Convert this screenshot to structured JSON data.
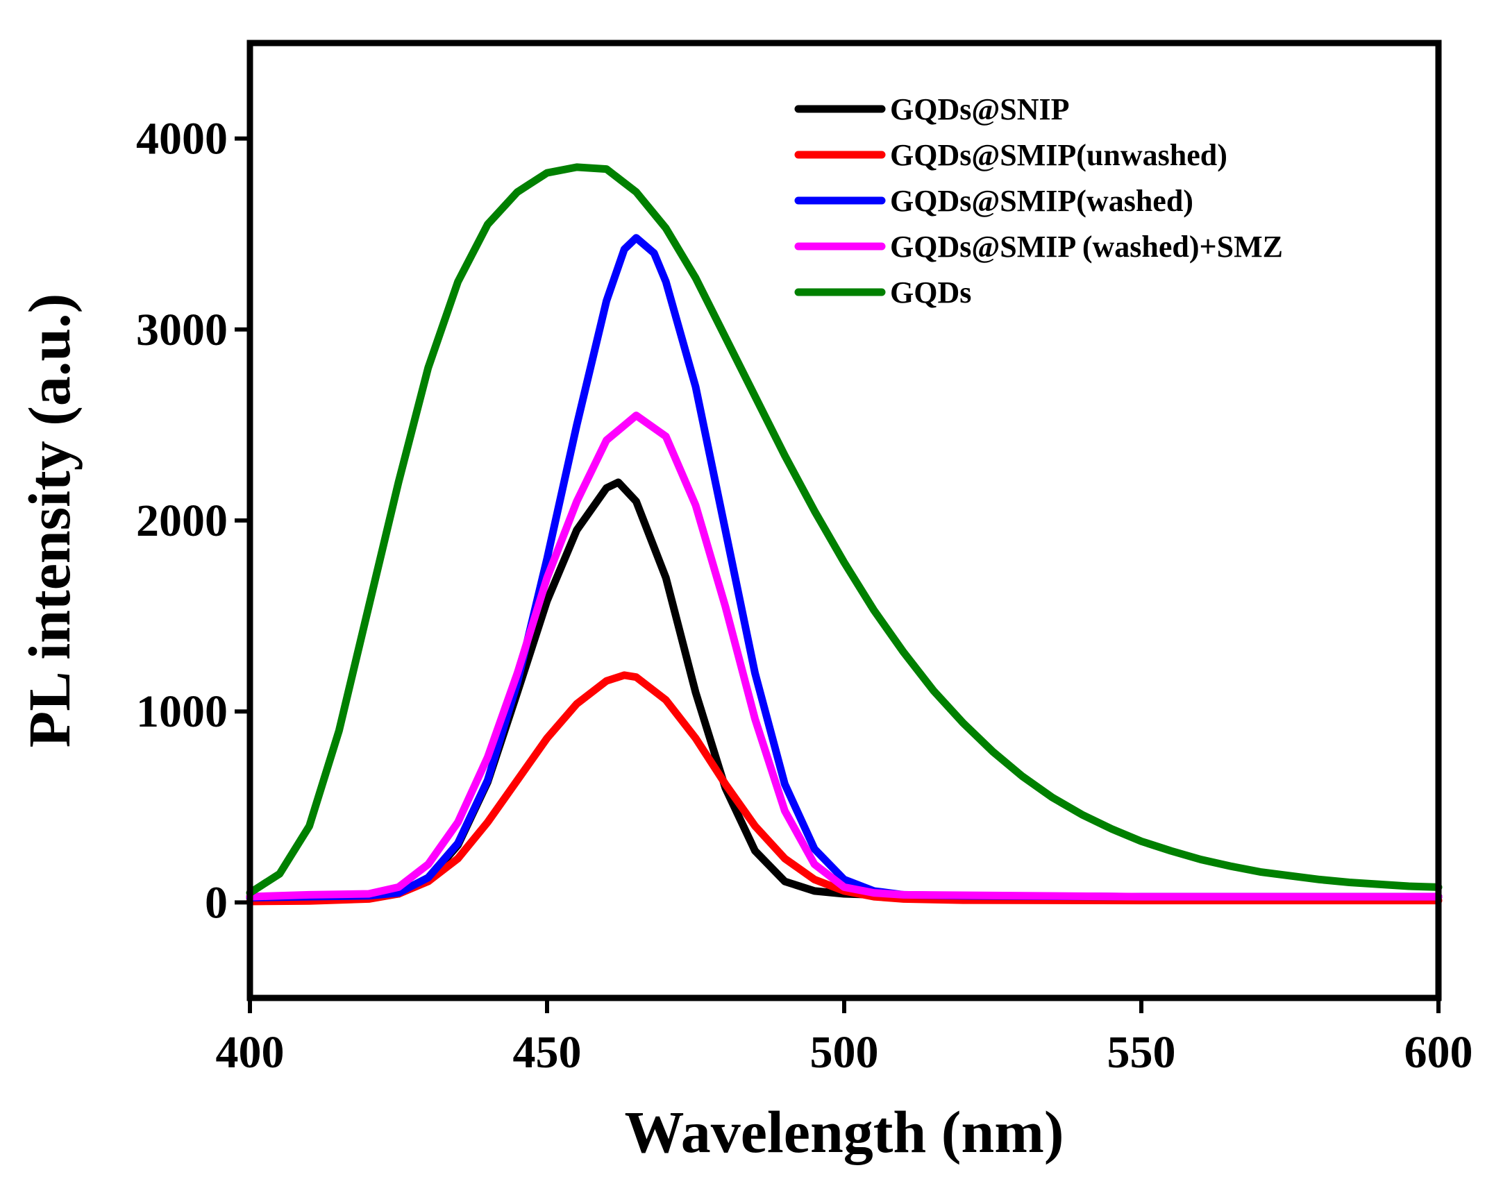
{
  "chart_data": {
    "type": "line",
    "title": "",
    "xlabel": "Wavelength (nm)",
    "ylabel": "PL intensity (a.u.)",
    "xlim": [
      400,
      600
    ],
    "ylim": [
      -500,
      4500
    ],
    "xticks": [
      400,
      450,
      500,
      550,
      600
    ],
    "yticks": [
      0,
      1000,
      2000,
      3000,
      4000
    ],
    "xtick_labels": [
      "400",
      "450",
      "500",
      "550",
      "600"
    ],
    "ytick_labels": [
      "0",
      "1000",
      "2000",
      "3000",
      "4000"
    ],
    "grid": false,
    "legend_position": "top-right",
    "series": [
      {
        "name": "GQDs@SNIP",
        "color": "#000000",
        "points": [
          [
            400,
            30
          ],
          [
            410,
            30
          ],
          [
            420,
            32
          ],
          [
            425,
            45
          ],
          [
            430,
            120
          ],
          [
            435,
            300
          ],
          [
            440,
            630
          ],
          [
            445,
            1100
          ],
          [
            450,
            1580
          ],
          [
            455,
            1950
          ],
          [
            460,
            2170
          ],
          [
            462,
            2200
          ],
          [
            465,
            2100
          ],
          [
            470,
            1700
          ],
          [
            475,
            1100
          ],
          [
            480,
            600
          ],
          [
            485,
            270
          ],
          [
            490,
            110
          ],
          [
            495,
            60
          ],
          [
            500,
            45
          ],
          [
            510,
            35
          ],
          [
            550,
            30
          ],
          [
            600,
            30
          ]
        ]
      },
      {
        "name": "GQDs@SMIP(unwashed)",
        "color": "#ff0000",
        "points": [
          [
            400,
            5
          ],
          [
            410,
            8
          ],
          [
            420,
            18
          ],
          [
            425,
            45
          ],
          [
            430,
            110
          ],
          [
            435,
            230
          ],
          [
            440,
            420
          ],
          [
            445,
            640
          ],
          [
            450,
            860
          ],
          [
            455,
            1040
          ],
          [
            460,
            1160
          ],
          [
            463,
            1190
          ],
          [
            465,
            1180
          ],
          [
            470,
            1060
          ],
          [
            475,
            860
          ],
          [
            480,
            620
          ],
          [
            485,
            400
          ],
          [
            490,
            230
          ],
          [
            495,
            120
          ],
          [
            500,
            60
          ],
          [
            505,
            30
          ],
          [
            510,
            18
          ],
          [
            520,
            12
          ],
          [
            550,
            10
          ],
          [
            600,
            10
          ]
        ]
      },
      {
        "name": "GQDs@SMIP(washed)",
        "color": "#0000ff",
        "points": [
          [
            400,
            25
          ],
          [
            410,
            30
          ],
          [
            420,
            35
          ],
          [
            425,
            50
          ],
          [
            430,
            130
          ],
          [
            435,
            310
          ],
          [
            440,
            640
          ],
          [
            445,
            1150
          ],
          [
            450,
            1800
          ],
          [
            455,
            2500
          ],
          [
            460,
            3150
          ],
          [
            463,
            3420
          ],
          [
            465,
            3480
          ],
          [
            468,
            3400
          ],
          [
            470,
            3250
          ],
          [
            475,
            2700
          ],
          [
            480,
            1950
          ],
          [
            485,
            1200
          ],
          [
            490,
            620
          ],
          [
            495,
            280
          ],
          [
            500,
            120
          ],
          [
            505,
            60
          ],
          [
            510,
            40
          ],
          [
            520,
            35
          ],
          [
            550,
            30
          ],
          [
            600,
            30
          ]
        ]
      },
      {
        "name": "GQDs@SMIP (washed)+SMZ",
        "color": "#ff00ff",
        "points": [
          [
            400,
            30
          ],
          [
            410,
            40
          ],
          [
            420,
            45
          ],
          [
            425,
            80
          ],
          [
            430,
            200
          ],
          [
            435,
            420
          ],
          [
            440,
            760
          ],
          [
            445,
            1200
          ],
          [
            450,
            1700
          ],
          [
            455,
            2100
          ],
          [
            460,
            2420
          ],
          [
            465,
            2550
          ],
          [
            470,
            2440
          ],
          [
            475,
            2080
          ],
          [
            480,
            1550
          ],
          [
            485,
            960
          ],
          [
            490,
            480
          ],
          [
            495,
            200
          ],
          [
            500,
            80
          ],
          [
            505,
            50
          ],
          [
            510,
            40
          ],
          [
            550,
            30
          ],
          [
            600,
            30
          ]
        ]
      },
      {
        "name": "GQDs",
        "color": "#008000",
        "points": [
          [
            400,
            50
          ],
          [
            405,
            150
          ],
          [
            410,
            400
          ],
          [
            415,
            900
          ],
          [
            420,
            1550
          ],
          [
            425,
            2200
          ],
          [
            430,
            2800
          ],
          [
            435,
            3250
          ],
          [
            440,
            3550
          ],
          [
            445,
            3720
          ],
          [
            450,
            3820
          ],
          [
            455,
            3850
          ],
          [
            460,
            3840
          ],
          [
            465,
            3720
          ],
          [
            470,
            3530
          ],
          [
            475,
            3270
          ],
          [
            480,
            2960
          ],
          [
            485,
            2650
          ],
          [
            490,
            2340
          ],
          [
            495,
            2050
          ],
          [
            500,
            1780
          ],
          [
            505,
            1530
          ],
          [
            510,
            1310
          ],
          [
            515,
            1110
          ],
          [
            520,
            940
          ],
          [
            525,
            790
          ],
          [
            530,
            660
          ],
          [
            535,
            550
          ],
          [
            540,
            460
          ],
          [
            545,
            385
          ],
          [
            550,
            320
          ],
          [
            555,
            270
          ],
          [
            560,
            225
          ],
          [
            565,
            190
          ],
          [
            570,
            160
          ],
          [
            575,
            140
          ],
          [
            580,
            120
          ],
          [
            585,
            105
          ],
          [
            590,
            95
          ],
          [
            595,
            85
          ],
          [
            600,
            80
          ]
        ]
      }
    ]
  }
}
